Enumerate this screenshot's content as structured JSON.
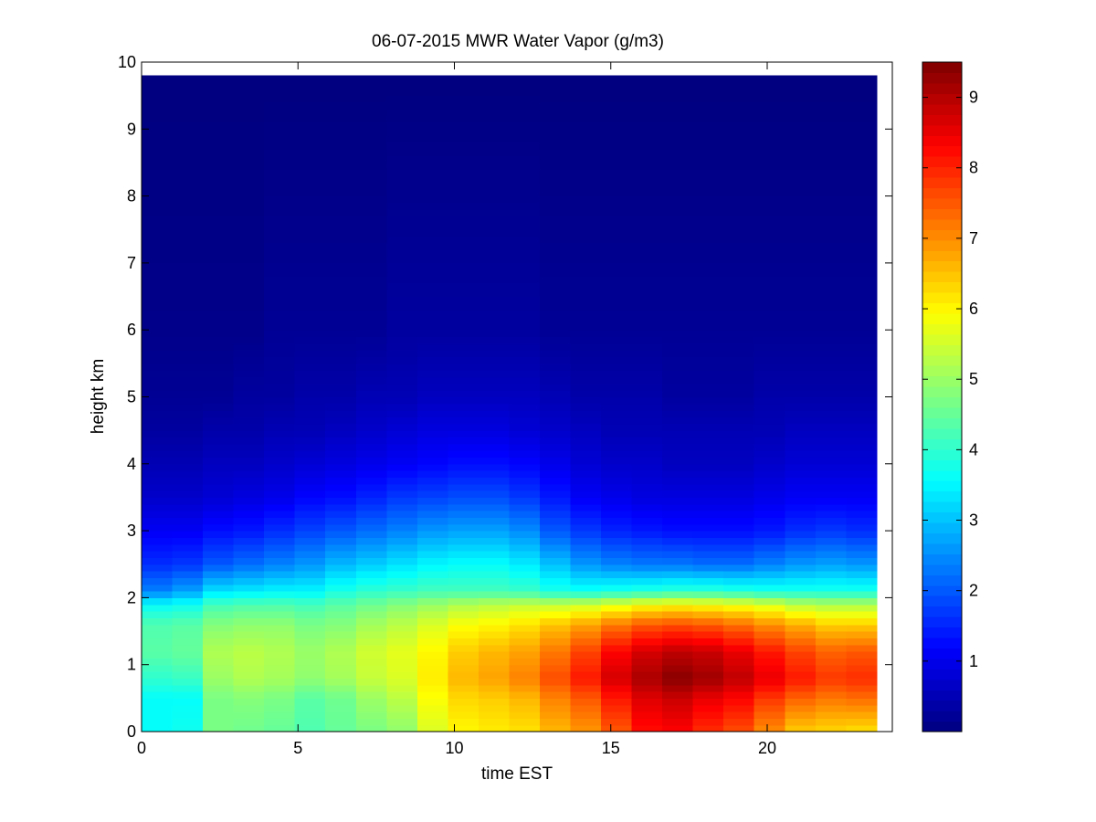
{
  "chart_data": {
    "type": "heatmap",
    "title": "06-07-2015 MWR Water Vapor (g/m3)",
    "xlabel": "time EST",
    "ylabel": "height km",
    "xlim": [
      0,
      24
    ],
    "ylim": [
      0,
      10
    ],
    "x_ticks": [
      0,
      5,
      10,
      15,
      20
    ],
    "y_ticks": [
      0,
      1,
      2,
      3,
      4,
      5,
      6,
      7,
      8,
      9,
      10
    ],
    "colorbar": {
      "colormap": "jet",
      "range": [
        0,
        9.5
      ],
      "ticks": [
        1,
        2,
        3,
        4,
        5,
        6,
        7,
        8,
        9
      ]
    },
    "time_hours": [
      0,
      1,
      2,
      3,
      4,
      5,
      6,
      7,
      8,
      9,
      10,
      11,
      12,
      13,
      14,
      15,
      16,
      17,
      18,
      19,
      20,
      21,
      22,
      23
    ],
    "time_range": [
      0,
      23.5
    ],
    "height_km_top": 9.75,
    "profiles": [
      {
        "h": 0.0,
        "v": [
          3.6,
          3.7,
          4.7,
          4.6,
          4.5,
          4.3,
          4.5,
          4.7,
          4.9,
          5.6,
          6.0,
          6.1,
          6.2,
          6.6,
          6.9,
          7.5,
          8.2,
          8.3,
          7.9,
          7.6,
          7.0,
          6.4,
          6.3,
          6.2
        ]
      },
      {
        "h": 0.5,
        "v": [
          3.6,
          3.6,
          4.7,
          4.8,
          4.7,
          4.4,
          4.6,
          5.0,
          5.3,
          5.9,
          6.3,
          6.4,
          6.6,
          7.1,
          7.5,
          8.1,
          8.6,
          8.8,
          8.5,
          8.3,
          7.8,
          7.4,
          7.2,
          7.3
        ]
      },
      {
        "h": 0.8,
        "v": [
          4.0,
          4.1,
          5.0,
          5.2,
          5.1,
          4.9,
          5.1,
          5.4,
          5.6,
          6.1,
          6.6,
          6.8,
          7.1,
          7.6,
          8.1,
          8.7,
          9.1,
          9.4,
          9.2,
          8.9,
          8.5,
          8.1,
          7.8,
          7.9
        ]
      },
      {
        "h": 1.2,
        "v": [
          4.4,
          4.5,
          5.2,
          5.3,
          5.2,
          5.0,
          5.2,
          5.5,
          5.7,
          6.0,
          6.4,
          6.6,
          6.8,
          7.2,
          7.7,
          8.3,
          8.7,
          8.9,
          8.8,
          8.5,
          8.1,
          7.7,
          7.4,
          7.5
        ]
      },
      {
        "h": 1.6,
        "v": [
          4.3,
          4.4,
          4.8,
          4.9,
          4.9,
          4.7,
          4.8,
          5.1,
          5.3,
          5.6,
          5.9,
          6.0,
          6.2,
          6.5,
          6.8,
          7.2,
          7.5,
          7.6,
          7.5,
          7.3,
          7.0,
          6.7,
          6.4,
          6.4
        ]
      },
      {
        "h": 1.9,
        "v": [
          3.6,
          3.7,
          4.2,
          4.3,
          4.3,
          4.2,
          4.4,
          4.6,
          4.8,
          5.0,
          5.2,
          5.3,
          5.4,
          5.4,
          5.5,
          5.7,
          5.9,
          6.0,
          5.9,
          5.8,
          5.6,
          5.3,
          5.2,
          5.2
        ]
      },
      {
        "h": 2.1,
        "v": [
          2.4,
          2.7,
          3.3,
          3.4,
          3.5,
          3.5,
          3.8,
          4.0,
          4.1,
          4.2,
          4.2,
          4.2,
          4.1,
          3.8,
          3.7,
          3.8,
          3.9,
          4.0,
          4.0,
          3.9,
          3.8,
          3.8,
          3.8,
          3.8
        ]
      },
      {
        "h": 2.5,
        "v": [
          1.6,
          1.7,
          2.0,
          2.2,
          2.4,
          2.6,
          2.9,
          3.1,
          3.3,
          3.5,
          3.6,
          3.6,
          3.4,
          3.0,
          2.6,
          2.4,
          2.3,
          2.3,
          2.2,
          2.2,
          2.4,
          2.6,
          2.7,
          2.6
        ]
      },
      {
        "h": 3.0,
        "v": [
          1.1,
          1.1,
          1.3,
          1.4,
          1.6,
          1.8,
          2.0,
          2.2,
          2.4,
          2.6,
          2.7,
          2.7,
          2.5,
          2.0,
          1.7,
          1.5,
          1.4,
          1.3,
          1.3,
          1.3,
          1.4,
          1.6,
          1.7,
          1.6
        ]
      },
      {
        "h": 3.5,
        "v": [
          0.7,
          0.7,
          0.8,
          0.9,
          1.0,
          1.2,
          1.3,
          1.5,
          1.7,
          1.8,
          1.9,
          1.9,
          1.7,
          1.4,
          1.1,
          1.0,
          0.9,
          0.9,
          0.9,
          0.9,
          1.0,
          1.1,
          1.1,
          1.1
        ]
      },
      {
        "h": 4.0,
        "v": [
          0.5,
          0.5,
          0.6,
          0.6,
          0.7,
          0.8,
          0.9,
          1.0,
          1.1,
          1.2,
          1.3,
          1.3,
          1.2,
          1.0,
          0.8,
          0.7,
          0.7,
          0.6,
          0.6,
          0.6,
          0.7,
          0.8,
          0.8,
          0.8
        ]
      },
      {
        "h": 4.5,
        "v": [
          0.3,
          0.3,
          0.4,
          0.4,
          0.5,
          0.5,
          0.6,
          0.7,
          0.8,
          0.9,
          0.9,
          0.9,
          0.8,
          0.7,
          0.6,
          0.5,
          0.5,
          0.5,
          0.5,
          0.5,
          0.5,
          0.6,
          0.6,
          0.6
        ]
      },
      {
        "h": 5.0,
        "v": [
          0.2,
          0.2,
          0.2,
          0.3,
          0.3,
          0.4,
          0.4,
          0.5,
          0.5,
          0.6,
          0.6,
          0.6,
          0.6,
          0.5,
          0.4,
          0.4,
          0.4,
          0.3,
          0.3,
          0.3,
          0.4,
          0.4,
          0.4,
          0.4
        ]
      },
      {
        "h": 6.0,
        "v": [
          0.1,
          0.1,
          0.1,
          0.1,
          0.2,
          0.2,
          0.2,
          0.2,
          0.3,
          0.3,
          0.3,
          0.3,
          0.3,
          0.2,
          0.2,
          0.2,
          0.2,
          0.2,
          0.2,
          0.2,
          0.2,
          0.2,
          0.2,
          0.2
        ]
      },
      {
        "h": 9.75,
        "v": [
          0,
          0,
          0,
          0,
          0,
          0,
          0,
          0,
          0,
          0,
          0,
          0,
          0,
          0,
          0,
          0,
          0,
          0,
          0,
          0,
          0,
          0,
          0,
          0
        ]
      }
    ]
  }
}
